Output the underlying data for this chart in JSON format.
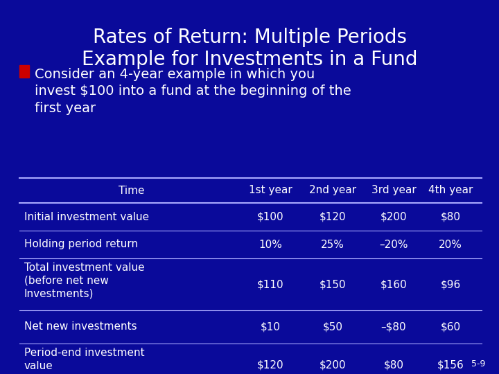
{
  "title_line1": "Rates of Return: Multiple Periods",
  "title_line2": "Example for Investments in a Fund",
  "bullet_text": "Consider an 4-year example in which you\ninvest $100 into a fund at the beginning of the\nfirst year",
  "bg_color": "#0A0A9A",
  "title_color": "#FFFFFF",
  "text_color": "#FFFFFF",
  "table_header": [
    "Time",
    "1st year",
    "2nd year",
    "3rd year",
    "4th year"
  ],
  "table_rows": [
    [
      "Initial investment value",
      "$100",
      "$120",
      "$200",
      "$80"
    ],
    [
      "Holding period return",
      "10%",
      "25%",
      "–20%",
      "20%"
    ],
    [
      "Total investment value\n(before net new\nInvestments)",
      "$110",
      "$150",
      "$160",
      "$96"
    ],
    [
      "Net new investments",
      "$10",
      "$50",
      "–$80",
      "$60"
    ],
    [
      "Period-end investment\nvalue",
      "$120",
      "$200",
      "$80",
      "$156"
    ]
  ],
  "footer": "5-9",
  "bullet_color": "#CC0000",
  "line_color": "#AAAAFF",
  "title_fontsize": 20,
  "bullet_fontsize": 14,
  "table_fontsize": 11
}
